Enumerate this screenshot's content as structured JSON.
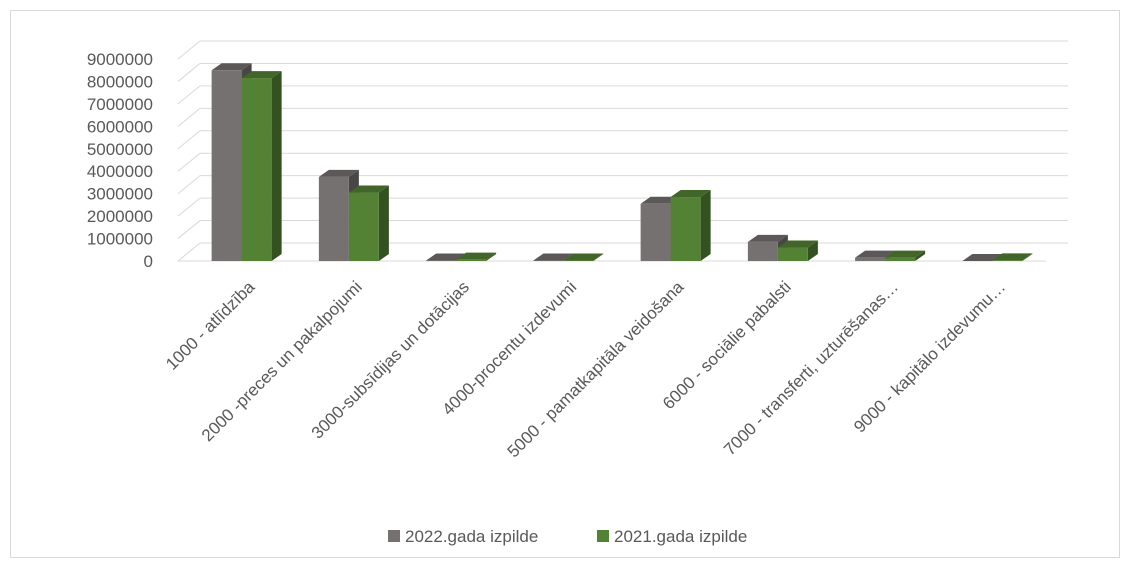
{
  "chart_data": {
    "type": "bar",
    "categories": [
      "1000 - atlīdzība",
      "2000 -preces un pakalpojumi",
      "3000-subsīdijas un dotācijas",
      "4000-procentu izdevumi",
      "5000 - pamatkapitāla veidošana",
      "6000 - sociālie pabalsti",
      "7000 - transferti, uzturēšanas…",
      "9000 - kapitālo izdevumu…"
    ],
    "series": [
      {
        "name": "2022.gada izpilde",
        "color": "#767171",
        "values": [
          8500000,
          3750000,
          20000,
          20000,
          2550000,
          850000,
          150000,
          0
        ]
      },
      {
        "name": "2021.gada izpilde",
        "color": "#548235",
        "values": [
          8150000,
          3050000,
          60000,
          20000,
          2850000,
          600000,
          150000,
          30000
        ]
      }
    ],
    "y_ticks": [
      "0",
      "1000000",
      "2000000",
      "3000000",
      "4000000",
      "5000000",
      "6000000",
      "7000000",
      "8000000",
      "9000000"
    ],
    "ylim": [
      0,
      9000000
    ],
    "grid": true,
    "legend_position": "bottom",
    "style": "3d-clustered-column"
  }
}
